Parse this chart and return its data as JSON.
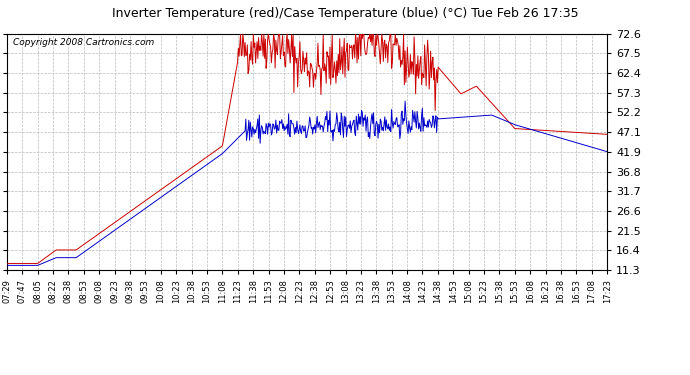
{
  "title": "Inverter Temperature (red)/Case Temperature (blue) (°C) Tue Feb 26 17:35",
  "copyright": "Copyright 2008 Cartronics.com",
  "yticks": [
    11.3,
    16.4,
    21.5,
    26.6,
    31.7,
    36.8,
    41.9,
    47.1,
    52.2,
    57.3,
    62.4,
    67.5,
    72.6
  ],
  "ymin": 11.3,
  "ymax": 72.6,
  "red_color": "#cc0000",
  "blue_color": "#0000cc",
  "bg_color": "#ffffff",
  "grid_color": "#bbbbbb",
  "xtick_labels": [
    "07:29",
    "07:47",
    "08:05",
    "08:22",
    "08:38",
    "08:53",
    "09:08",
    "09:23",
    "09:38",
    "09:53",
    "10:08",
    "10:23",
    "10:38",
    "10:53",
    "11:08",
    "11:23",
    "11:38",
    "11:53",
    "12:08",
    "12:23",
    "12:38",
    "12:53",
    "13:08",
    "13:23",
    "13:38",
    "13:53",
    "14:08",
    "14:23",
    "14:38",
    "14:53",
    "15:08",
    "15:23",
    "15:38",
    "15:53",
    "16:08",
    "16:23",
    "16:38",
    "16:53",
    "17:08",
    "17:23"
  ]
}
